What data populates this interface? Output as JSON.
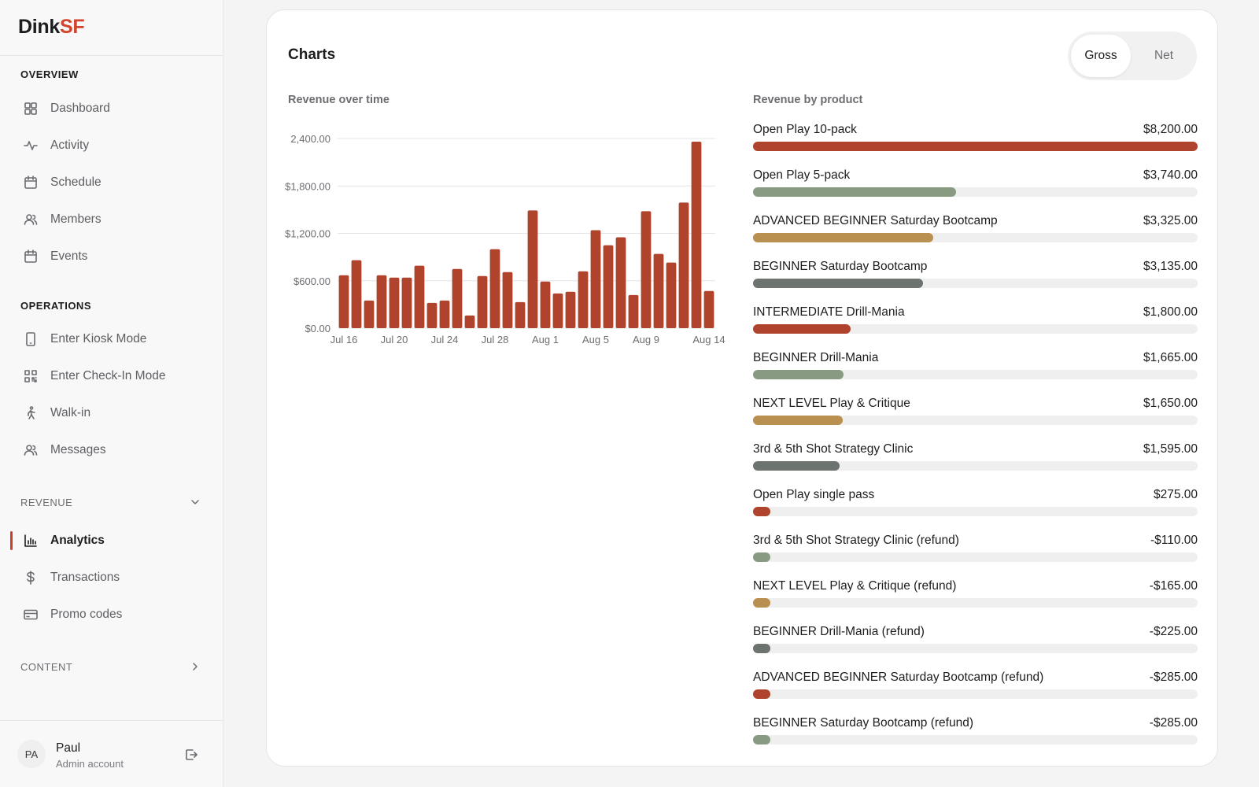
{
  "brand": {
    "part1": "Dink",
    "part2": "SF"
  },
  "sidebar": {
    "overview_title": "OVERVIEW",
    "overview": [
      {
        "label": "Dashboard",
        "icon": "grid-icon"
      },
      {
        "label": "Activity",
        "icon": "activity-icon"
      },
      {
        "label": "Schedule",
        "icon": "calendar-icon"
      },
      {
        "label": "Members",
        "icon": "users-icon"
      },
      {
        "label": "Events",
        "icon": "calendar-icon"
      }
    ],
    "operations_title": "OPERATIONS",
    "operations": [
      {
        "label": "Enter Kiosk Mode",
        "icon": "tablet-icon"
      },
      {
        "label": "Enter Check-In Mode",
        "icon": "qr-code-icon"
      },
      {
        "label": "Walk-in",
        "icon": "walking-icon"
      },
      {
        "label": "Messages",
        "icon": "users-icon"
      }
    ],
    "revenue_title": "REVENUE",
    "revenue": [
      {
        "label": "Analytics",
        "icon": "bar-chart-icon",
        "active": true
      },
      {
        "label": "Transactions",
        "icon": "dollar-icon"
      },
      {
        "label": "Promo codes",
        "icon": "credit-card-icon"
      }
    ],
    "content_title": "CONTENT"
  },
  "user": {
    "initials": "PA",
    "name": "Paul",
    "role": "Admin account"
  },
  "card": {
    "title": "Charts",
    "toggle": {
      "gross": "Gross",
      "net": "Net",
      "selected": "Gross"
    },
    "time_title": "Revenue over time",
    "product_title": "Revenue by product"
  },
  "colors": {
    "red": "#b0432c",
    "sage": "#899a82",
    "gold": "#b9904f",
    "slate": "#6d7470",
    "track": "#efefef"
  },
  "chart_data": [
    {
      "type": "bar",
      "title": "Revenue over time",
      "ylim": [
        0,
        2400
      ],
      "yticks": [
        "$0.00",
        "$600.00",
        "$1,200.00",
        "$1,800.00",
        "2,400.00"
      ],
      "xticks": [
        "Jul 16",
        "Jul 20",
        "Jul 24",
        "Jul 28",
        "Aug 1",
        "Aug 5",
        "Aug 9",
        "Aug 14"
      ],
      "grid": true,
      "values": [
        670,
        860,
        350,
        670,
        640,
        640,
        790,
        320,
        350,
        750,
        160,
        660,
        1000,
        710,
        330,
        1490,
        590,
        440,
        460,
        720,
        1240,
        1050,
        1150,
        420,
        1480,
        940,
        830,
        1590,
        2360,
        470
      ]
    },
    {
      "type": "bar",
      "orientation": "horizontal",
      "title": "Revenue by product",
      "max": 8200,
      "items": [
        {
          "name": "Open Play 10-pack",
          "label": "$8,200.00",
          "value": 8200,
          "color": "red"
        },
        {
          "name": "Open Play 5-pack",
          "label": "$3,740.00",
          "value": 3740,
          "color": "sage"
        },
        {
          "name": "ADVANCED BEGINNER Saturday Bootcamp",
          "label": "$3,325.00",
          "value": 3325,
          "color": "gold"
        },
        {
          "name": "BEGINNER Saturday Bootcamp",
          "label": "$3,135.00",
          "value": 3135,
          "color": "slate"
        },
        {
          "name": "INTERMEDIATE Drill-Mania",
          "label": "$1,800.00",
          "value": 1800,
          "color": "red"
        },
        {
          "name": "BEGINNER Drill-Mania",
          "label": "$1,665.00",
          "value": 1665,
          "color": "sage"
        },
        {
          "name": "NEXT LEVEL Play & Critique",
          "label": "$1,650.00",
          "value": 1650,
          "color": "gold"
        },
        {
          "name": "3rd & 5th Shot Strategy Clinic",
          "label": "$1,595.00",
          "value": 1595,
          "color": "slate"
        },
        {
          "name": "Open Play single pass",
          "label": "$275.00",
          "value": 275,
          "color": "red"
        },
        {
          "name": "3rd & 5th Shot Strategy Clinic (refund)",
          "label": "-$110.00",
          "value": -110,
          "color": "sage"
        },
        {
          "name": "NEXT LEVEL Play & Critique (refund)",
          "label": "-$165.00",
          "value": -165,
          "color": "gold"
        },
        {
          "name": "BEGINNER Drill-Mania (refund)",
          "label": "-$225.00",
          "value": -225,
          "color": "slate"
        },
        {
          "name": "ADVANCED BEGINNER Saturday Bootcamp (refund)",
          "label": "-$285.00",
          "value": -285,
          "color": "red"
        },
        {
          "name": "BEGINNER Saturday Bootcamp (refund)",
          "label": "-$285.00",
          "value": -285,
          "color": "sage"
        }
      ]
    }
  ]
}
